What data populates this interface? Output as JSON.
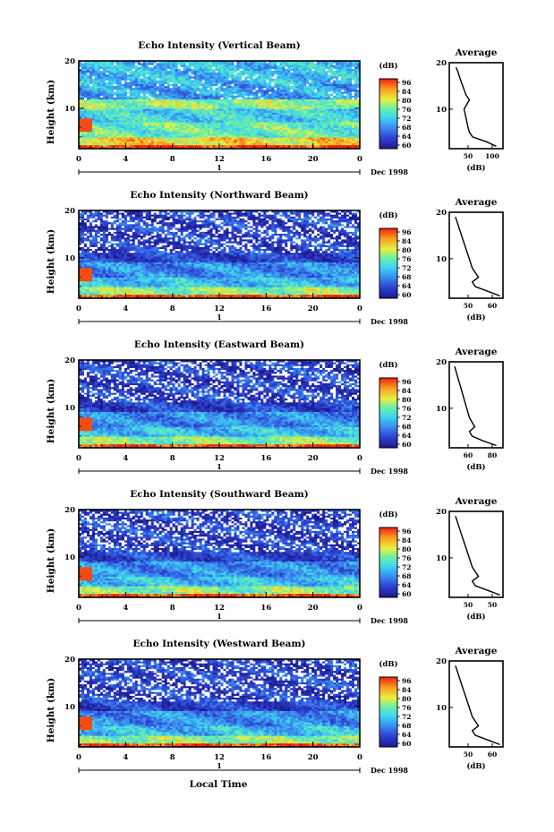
{
  "figure": {
    "xlabel": "Local Time",
    "date_label": "Dec 1998",
    "day_label": "1",
    "ylabel": "Height (km)",
    "avg_title": "Average",
    "avg_xlabel": "(dB)",
    "cb_unit": "(dB)"
  },
  "chart_data": [
    {
      "type": "heatmap",
      "title": "Echo Intensity (Vertical Beam)",
      "xlabel": "",
      "ylabel": "Height (km)",
      "x_ticks": [
        "0",
        "4",
        "8",
        "12",
        "16",
        "20",
        "0"
      ],
      "xlim": [
        0,
        24
      ],
      "y_ticks": [
        "20",
        "10"
      ],
      "ylim": [
        1.5,
        20
      ],
      "colorbar_ticks": [
        "96",
        "84",
        "80",
        "76",
        "72",
        "68",
        "64",
        "60"
      ],
      "colorbar_range": [
        60,
        96
      ],
      "avg_profile": {
        "title": "Average",
        "xlabel": "(dB)",
        "x_ticks": [
          "50",
          "100"
        ],
        "xlim": [
          30,
          110
        ],
        "height": [
          2,
          3,
          4,
          5,
          6,
          8,
          10,
          12,
          13,
          15,
          17,
          18,
          19
        ],
        "value": [
          100,
          85,
          65,
          60,
          58,
          55,
          52,
          60,
          55,
          50,
          45,
          43,
          40
        ]
      }
    },
    {
      "type": "heatmap",
      "title": "Echo Intensity (Northward Beam)",
      "xlabel": "",
      "ylabel": "Height (km)",
      "x_ticks": [
        "0",
        "4",
        "8",
        "12",
        "16",
        "20",
        "0"
      ],
      "xlim": [
        0,
        24
      ],
      "y_ticks": [
        "20",
        "10"
      ],
      "ylim": [
        1.5,
        20
      ],
      "colorbar_ticks": [
        "96",
        "84",
        "80",
        "76",
        "72",
        "68",
        "64",
        "60"
      ],
      "colorbar_range": [
        60,
        96
      ],
      "avg_profile": {
        "title": "Average",
        "xlabel": "(dB)",
        "x_ticks": [
          "50",
          "60"
        ],
        "xlim": [
          45,
          80
        ],
        "height": [
          2,
          3,
          4,
          5,
          6,
          8,
          10,
          12,
          14,
          16,
          18,
          19
        ],
        "value": [
          78,
          70,
          62,
          60,
          64,
          60,
          58,
          56,
          54,
          52,
          50,
          49
        ]
      }
    },
    {
      "type": "heatmap",
      "title": "Echo Intensity (Eastward Beam)",
      "xlabel": "",
      "ylabel": "Height (km)",
      "x_ticks": [
        "0",
        "4",
        "8",
        "12",
        "16",
        "20",
        "0"
      ],
      "xlim": [
        0,
        24
      ],
      "y_ticks": [
        "20",
        "10"
      ],
      "ylim": [
        1.5,
        20
      ],
      "colorbar_ticks": [
        "96",
        "84",
        "80",
        "76",
        "72",
        "68",
        "64",
        "60"
      ],
      "colorbar_range": [
        60,
        96
      ],
      "avg_profile": {
        "title": "Average",
        "xlabel": "(dB)",
        "x_ticks": [
          "60",
          "80"
        ],
        "xlim": [
          45,
          85
        ],
        "height": [
          2,
          3,
          4,
          5,
          6,
          8,
          10,
          12,
          14,
          16,
          18,
          19
        ],
        "value": [
          80,
          70,
          62,
          60,
          64,
          60,
          58,
          56,
          54,
          52,
          50,
          49
        ]
      }
    },
    {
      "type": "heatmap",
      "title": "Echo Intensity (Southward Beam)",
      "xlabel": "",
      "ylabel": "Height (km)",
      "x_ticks": [
        "0",
        "4",
        "8",
        "12",
        "16",
        "20",
        "0"
      ],
      "xlim": [
        0,
        24
      ],
      "y_ticks": [
        "20",
        "10"
      ],
      "ylim": [
        1.5,
        20
      ],
      "colorbar_ticks": [
        "96",
        "84",
        "80",
        "76",
        "72",
        "68",
        "64",
        "60"
      ],
      "colorbar_range": [
        60,
        96
      ],
      "avg_profile": {
        "title": "Average",
        "xlabel": "(dB)",
        "x_ticks": [
          "50",
          "50"
        ],
        "xlim": [
          45,
          80
        ],
        "height": [
          2,
          3,
          4,
          5,
          6,
          8,
          10,
          12,
          14,
          16,
          18,
          19
        ],
        "value": [
          78,
          70,
          62,
          60,
          64,
          60,
          58,
          56,
          54,
          52,
          50,
          49
        ]
      }
    },
    {
      "type": "heatmap",
      "title": "Echo Intensity (Westward Beam)",
      "xlabel": "Local Time",
      "ylabel": "Height (km)",
      "x_ticks": [
        "0",
        "4",
        "8",
        "12",
        "16",
        "20",
        "0"
      ],
      "xlim": [
        0,
        24
      ],
      "y_ticks": [
        "20",
        "10"
      ],
      "ylim": [
        1.5,
        20
      ],
      "colorbar_ticks": [
        "96",
        "84",
        "80",
        "76",
        "72",
        "68",
        "64",
        "60"
      ],
      "colorbar_range": [
        60,
        96
      ],
      "avg_profile": {
        "title": "Average",
        "xlabel": "(dB)",
        "x_ticks": [
          "50",
          "60"
        ],
        "xlim": [
          45,
          80
        ],
        "height": [
          2,
          3,
          4,
          5,
          6,
          8,
          10,
          12,
          14,
          16,
          18,
          19
        ],
        "value": [
          78,
          70,
          62,
          60,
          64,
          60,
          58,
          56,
          54,
          52,
          50,
          49
        ]
      }
    }
  ]
}
